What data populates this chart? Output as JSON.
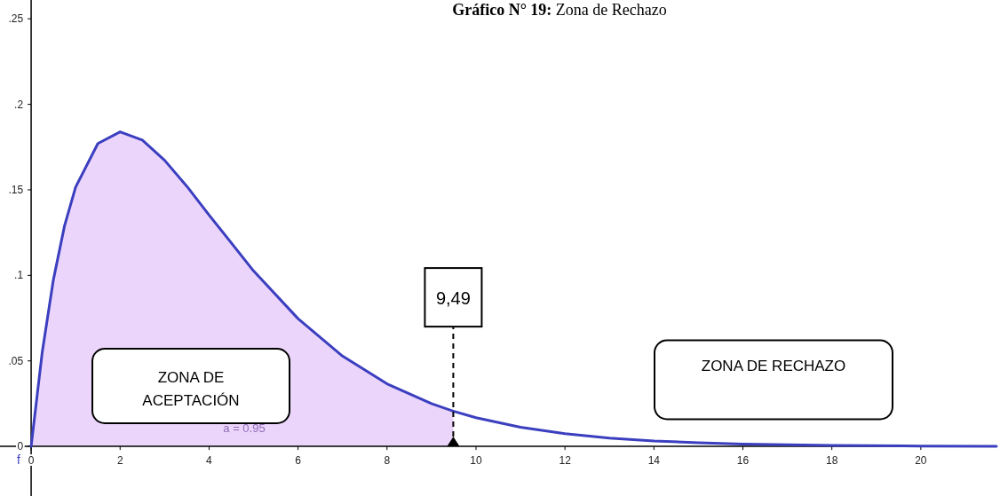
{
  "chart_data": {
    "type": "line",
    "title": "Gráfico N° 19: Zona de Rechazo",
    "xlim": [
      -0.7,
      21.7
    ],
    "ylim": [
      -0.029,
      0.261
    ],
    "xticks": [
      0,
      2,
      4,
      6,
      8,
      10,
      12,
      14,
      16,
      18,
      20
    ],
    "yticks": [
      {
        "value": 0,
        "label": "0"
      },
      {
        "value": 0.05,
        "label": ".05"
      },
      {
        "value": 0.1,
        "label": ".1"
      },
      {
        "value": 0.15,
        "label": ".15"
      },
      {
        "value": 0.2,
        "label": ".2"
      },
      {
        "value": 0.25,
        "label": ".25"
      }
    ],
    "grid": false,
    "marker": "none",
    "line_style": "solid",
    "series": [
      {
        "type": "area",
        "color": "#ecd5fb",
        "x": [
          0,
          0.25,
          0.5,
          0.75,
          1,
          1.5,
          2,
          2.5,
          3,
          3.5,
          4,
          5,
          6,
          7,
          8,
          9,
          9.49
        ],
        "values": [
          0,
          0.0552,
          0.0974,
          0.1289,
          0.1516,
          0.1771,
          0.1839,
          0.1791,
          0.1673,
          0.1521,
          0.1353,
          0.1026,
          0.0747,
          0.0528,
          0.0366,
          0.025,
          0.0206
        ]
      },
      {
        "type": "line",
        "name": "f",
        "color": "#3b3fbf",
        "x": [
          0,
          0.25,
          0.5,
          0.75,
          1,
          1.5,
          2,
          2.5,
          3,
          3.5,
          4,
          5,
          6,
          7,
          8,
          9,
          9.49,
          10,
          11,
          12,
          13,
          14,
          15,
          16,
          18,
          20,
          21.7
        ],
        "values": [
          0,
          0.0552,
          0.0974,
          0.1289,
          0.1516,
          0.1771,
          0.1839,
          0.1791,
          0.1673,
          0.1521,
          0.1353,
          0.1026,
          0.0747,
          0.0528,
          0.0366,
          0.025,
          0.0206,
          0.0168,
          0.0112,
          0.0074,
          0.0049,
          0.0032,
          0.0021,
          0.0013,
          0.0006,
          0.0002,
          0.0001
        ]
      }
    ],
    "ref_lines": [
      {
        "axis": "x",
        "value": 9.49,
        "label": "9,49",
        "color": "#000000",
        "line_style": "dashed"
      }
    ],
    "annotations": [
      "ZONA DE ACEPTACIÓN",
      "ZONA DE RECHAZO",
      "a = 0.95"
    ]
  }
}
